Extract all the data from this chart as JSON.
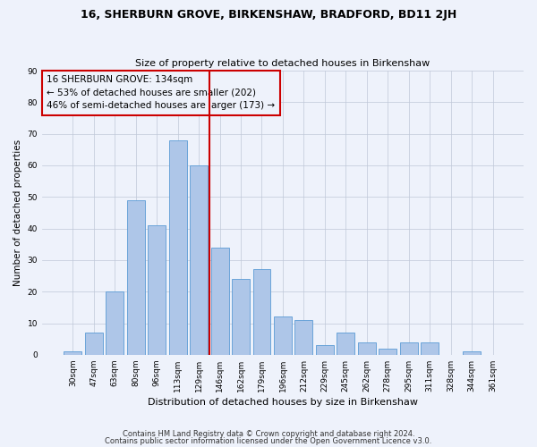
{
  "title1": "16, SHERBURN GROVE, BIRKENSHAW, BRADFORD, BD11 2JH",
  "title2": "Size of property relative to detached houses in Birkenshaw",
  "xlabel": "Distribution of detached houses by size in Birkenshaw",
  "ylabel": "Number of detached properties",
  "bar_labels": [
    "30sqm",
    "47sqm",
    "63sqm",
    "80sqm",
    "96sqm",
    "113sqm",
    "129sqm",
    "146sqm",
    "162sqm",
    "179sqm",
    "196sqm",
    "212sqm",
    "229sqm",
    "245sqm",
    "262sqm",
    "278sqm",
    "295sqm",
    "311sqm",
    "328sqm",
    "344sqm",
    "361sqm"
  ],
  "bar_values": [
    1,
    7,
    20,
    49,
    41,
    68,
    60,
    34,
    24,
    27,
    12,
    11,
    3,
    7,
    4,
    2,
    4,
    4,
    0,
    1,
    0
  ],
  "bar_color": "#aec6e8",
  "bar_edge_color": "#5b9bd5",
  "vline_index": 6.5,
  "marker_line1": "16 SHERBURN GROVE: 134sqm",
  "marker_line2": "← 53% of detached houses are smaller (202)",
  "marker_line3": "46% of semi-detached houses are larger (173) →",
  "vline_color": "#cc0000",
  "annotation_box_color": "#cc0000",
  "ylim": [
    0,
    90
  ],
  "yticks": [
    0,
    10,
    20,
    30,
    40,
    50,
    60,
    70,
    80,
    90
  ],
  "background_color": "#eef2fb",
  "footer1": "Contains HM Land Registry data © Crown copyright and database right 2024.",
  "footer2": "Contains public sector information licensed under the Open Government Licence v3.0."
}
